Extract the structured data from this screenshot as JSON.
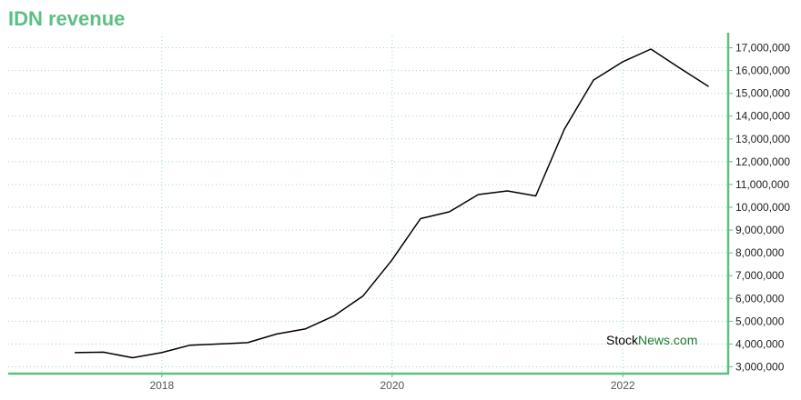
{
  "title": "IDN revenue",
  "watermark": {
    "part1": "Stock",
    "part2": "News.com",
    "color1": "#000000",
    "color2": "#1a7a2e"
  },
  "colors": {
    "accent": "#5cbf84",
    "line": "#000000",
    "grid": "#9fd8b4"
  },
  "chart_data": {
    "type": "line",
    "title": "IDN revenue",
    "xlabel": "",
    "ylabel": "",
    "x_ticks": [
      "2018",
      "2020",
      "2022"
    ],
    "y_ticks": [
      3000000,
      4000000,
      5000000,
      6000000,
      7000000,
      8000000,
      9000000,
      10000000,
      11000000,
      12000000,
      13000000,
      14000000,
      15000000,
      16000000,
      17000000
    ],
    "y_tick_labels": [
      "3,000,000",
      "4,000,000",
      "5,000,000",
      "6,000,000",
      "7,000,000",
      "8,000,000",
      "9,000,000",
      "10,000,000",
      "11,000,000",
      "12,000,000",
      "13,000,000",
      "14,000,000",
      "15,000,000",
      "16,000,000",
      "17,000,000"
    ],
    "ylim": [
      2700000,
      17500000
    ],
    "grid": true,
    "series": [
      {
        "x": [
          "2017-03-31",
          "2017-06-30",
          "2017-09-30",
          "2017-12-31",
          "2018-03-31",
          "2018-06-30",
          "2018-09-30",
          "2018-12-31",
          "2019-03-31",
          "2019-06-30",
          "2019-09-30",
          "2019-12-31",
          "2020-03-31",
          "2020-06-30",
          "2020-09-30",
          "2020-12-31",
          "2021-03-31",
          "2021-06-30",
          "2021-09-30",
          "2021-12-31",
          "2022-03-31",
          "2022-06-30",
          "2022-09-30"
        ],
        "values": [
          3620000,
          3640000,
          3400000,
          3620000,
          3950000,
          4000000,
          4060000,
          4440000,
          4660000,
          5230000,
          6100000,
          7680000,
          9500000,
          9800000,
          10560000,
          10720000,
          10500000,
          13430000,
          15580000,
          16380000,
          16940000,
          16110000,
          15300000
        ]
      }
    ]
  }
}
